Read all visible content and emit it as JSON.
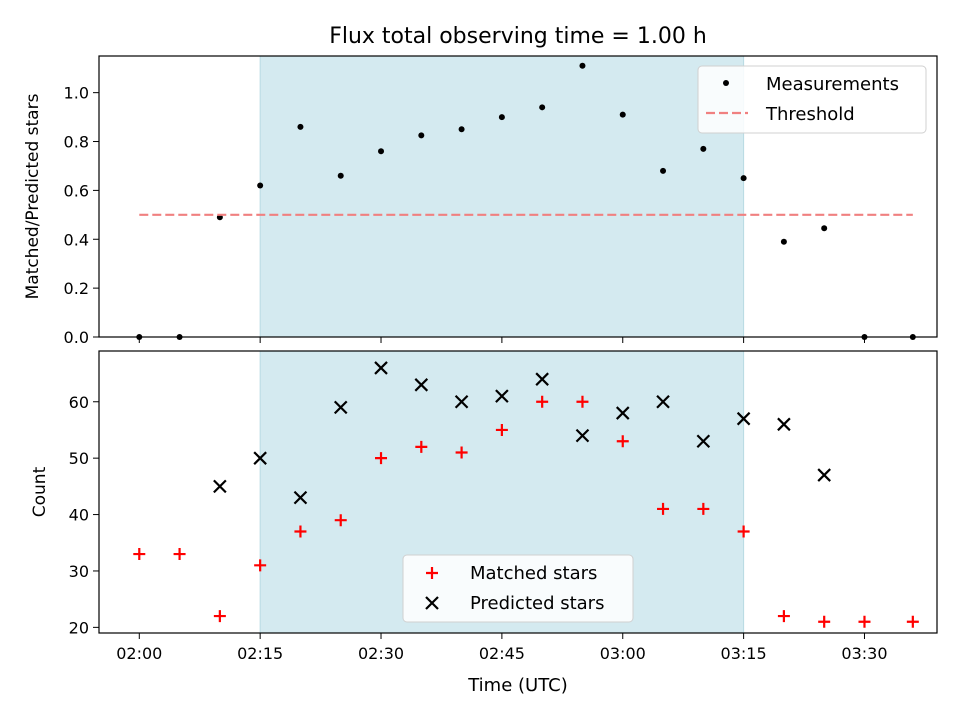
{
  "title": "Flux total observing time = 1.00 h",
  "xlabel": "Time (UTC)",
  "x_tick_labels": [
    "02:00",
    "02:15",
    "02:30",
    "02:45",
    "03:00",
    "03:15",
    "03:30"
  ],
  "chart_data": [
    {
      "type": "scatter",
      "ylabel": "Matched/Predicted stars",
      "ylim": [
        0,
        1.15
      ],
      "yticks": [
        0.0,
        0.2,
        0.4,
        0.6,
        0.8,
        1.0
      ],
      "xlim": [
        "01:55",
        "03:39"
      ],
      "shaded_interval": [
        "02:15",
        "03:15"
      ],
      "shade_color": "#d4eaf0",
      "legend_position": "top-right",
      "series": [
        {
          "name": "Measurements",
          "kind": "points",
          "color": "#000000",
          "x": [
            "02:00",
            "02:05",
            "02:10",
            "02:15",
            "02:20",
            "02:25",
            "02:30",
            "02:35",
            "02:40",
            "02:45",
            "02:50",
            "02:55",
            "03:00",
            "03:05",
            "03:10",
            "03:15",
            "03:20",
            "03:25",
            "03:30",
            "03:36"
          ],
          "y": [
            0.0,
            0.0,
            0.49,
            0.62,
            0.86,
            0.66,
            0.76,
            0.825,
            0.85,
            0.9,
            0.94,
            1.11,
            0.91,
            0.68,
            0.77,
            0.65,
            0.39,
            0.445,
            0.0,
            0.0
          ]
        },
        {
          "name": "Threshold",
          "kind": "dashed-line",
          "color": "#f08080",
          "x": [
            "02:00",
            "03:36"
          ],
          "y": [
            0.5,
            0.5
          ]
        }
      ]
    },
    {
      "type": "scatter",
      "ylabel": "Count",
      "ylim": [
        19,
        69
      ],
      "yticks": [
        20,
        30,
        40,
        50,
        60
      ],
      "xlim": [
        "01:55",
        "03:39"
      ],
      "shaded_interval": [
        "02:15",
        "03:15"
      ],
      "shade_color": "#d4eaf0",
      "legend_position": "lower-center",
      "series": [
        {
          "name": "Matched stars",
          "marker": "plus",
          "color": "#ff0000",
          "x": [
            "02:00",
            "02:05",
            "02:10",
            "02:15",
            "02:20",
            "02:25",
            "02:30",
            "02:35",
            "02:40",
            "02:45",
            "02:50",
            "02:55",
            "03:00",
            "03:05",
            "03:10",
            "03:15",
            "03:20",
            "03:25",
            "03:30",
            "03:36"
          ],
          "y": [
            33,
            33,
            22,
            31,
            37,
            39,
            50,
            52,
            51,
            55,
            60,
            60,
            53,
            41,
            41,
            37,
            22,
            21,
            21,
            21
          ]
        },
        {
          "name": "Predicted stars",
          "marker": "x",
          "color": "#000000",
          "x": [
            "02:10",
            "02:15",
            "02:20",
            "02:25",
            "02:30",
            "02:35",
            "02:40",
            "02:45",
            "02:50",
            "02:55",
            "03:00",
            "03:05",
            "03:10",
            "03:15",
            "03:20",
            "03:25"
          ],
          "y": [
            45,
            50,
            43,
            59,
            66,
            63,
            60,
            61,
            64,
            54,
            58,
            60,
            53,
            57,
            56,
            47
          ]
        }
      ]
    }
  ]
}
